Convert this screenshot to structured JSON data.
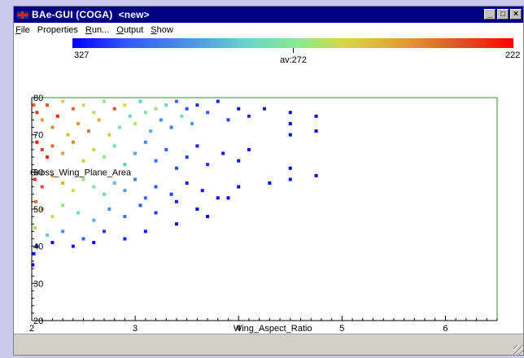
{
  "window": {
    "title": "BAe-GUI (COGA)  <new>",
    "buttons": {
      "minimize": "_",
      "maximize": "□",
      "close": "×"
    }
  },
  "menu": [
    {
      "label": "File",
      "underline": "F",
      "rest": "ile"
    },
    {
      "label": "Properties",
      "underline": "",
      "rest": "Properties"
    },
    {
      "label": "Run...",
      "underline": "R",
      "rest": "un..."
    },
    {
      "label": "Output",
      "underline": "O",
      "rest": "utput"
    },
    {
      "label": "Show",
      "underline": "S",
      "rest": "how"
    }
  ],
  "colorbar": {
    "min_label": "327",
    "max_label": "222",
    "avg_label": "av:272",
    "colors": [
      "#0000ff",
      "#3355ff",
      "#4a8be8",
      "#6ad6c8",
      "#8ee88a",
      "#d8d840",
      "#e09a30",
      "#e05028",
      "#ff0000"
    ]
  },
  "chart_data": {
    "type": "scatter",
    "xlabel": "Wing_Aspect_Ratio",
    "ylabel": "Gross_Wing_Plane_Area",
    "xlim": [
      2,
      6.5
    ],
    "ylim": [
      20,
      80
    ],
    "xticks": [
      "2",
      "3",
      "4",
      "5",
      "6"
    ],
    "yticks": [
      "20",
      "30",
      "40",
      "50",
      "60",
      "70",
      "80"
    ],
    "grid": false,
    "color_scale": "value 327 (blue) to 222 (red)",
    "points": [
      {
        "x": 2.02,
        "y": 78,
        "v": 240
      },
      {
        "x": 2.05,
        "y": 76,
        "v": 230
      },
      {
        "x": 2.1,
        "y": 74,
        "v": 250
      },
      {
        "x": 2.15,
        "y": 78,
        "v": 235
      },
      {
        "x": 2.2,
        "y": 72,
        "v": 245
      },
      {
        "x": 2.25,
        "y": 75,
        "v": 228
      },
      {
        "x": 2.3,
        "y": 79,
        "v": 260
      },
      {
        "x": 2.35,
        "y": 70,
        "v": 255
      },
      {
        "x": 2.4,
        "y": 77,
        "v": 238
      },
      {
        "x": 2.45,
        "y": 73,
        "v": 248
      },
      {
        "x": 2.5,
        "y": 78,
        "v": 265
      },
      {
        "x": 2.55,
        "y": 71,
        "v": 242
      },
      {
        "x": 2.6,
        "y": 76,
        "v": 270
      },
      {
        "x": 2.65,
        "y": 74,
        "v": 252
      },
      {
        "x": 2.7,
        "y": 79,
        "v": 275
      },
      {
        "x": 2.75,
        "y": 70,
        "v": 258
      },
      {
        "x": 2.8,
        "y": 77,
        "v": 236
      },
      {
        "x": 2.85,
        "y": 72,
        "v": 280
      },
      {
        "x": 2.9,
        "y": 78,
        "v": 262
      },
      {
        "x": 2.95,
        "y": 75,
        "v": 285
      },
      {
        "x": 3.0,
        "y": 73,
        "v": 268
      },
      {
        "x": 3.05,
        "y": 79,
        "v": 290
      },
      {
        "x": 3.1,
        "y": 76,
        "v": 278
      },
      {
        "x": 3.15,
        "y": 71,
        "v": 295
      },
      {
        "x": 3.2,
        "y": 77,
        "v": 272
      },
      {
        "x": 3.25,
        "y": 74,
        "v": 300
      },
      {
        "x": 3.3,
        "y": 78,
        "v": 288
      },
      {
        "x": 3.35,
        "y": 72,
        "v": 305
      },
      {
        "x": 3.4,
        "y": 79,
        "v": 310
      },
      {
        "x": 3.45,
        "y": 75,
        "v": 283
      },
      {
        "x": 3.5,
        "y": 77,
        "v": 315
      },
      {
        "x": 3.55,
        "y": 73,
        "v": 298
      },
      {
        "x": 3.6,
        "y": 78,
        "v": 320
      },
      {
        "x": 3.7,
        "y": 76,
        "v": 312
      },
      {
        "x": 3.8,
        "y": 79,
        "v": 322
      },
      {
        "x": 3.9,
        "y": 74,
        "v": 318
      },
      {
        "x": 4.0,
        "y": 77,
        "v": 325
      },
      {
        "x": 4.1,
        "y": 75,
        "v": 320
      },
      {
        "x": 4.25,
        "y": 77,
        "v": 324
      },
      {
        "x": 4.5,
        "y": 76,
        "v": 326
      },
      {
        "x": 4.5,
        "y": 73,
        "v": 325
      },
      {
        "x": 4.75,
        "y": 75,
        "v": 326
      },
      {
        "x": 4.75,
        "y": 71,
        "v": 327
      },
      {
        "x": 4.5,
        "y": 70,
        "v": 326
      },
      {
        "x": 2.05,
        "y": 68,
        "v": 225
      },
      {
        "x": 2.1,
        "y": 66,
        "v": 232
      },
      {
        "x": 2.15,
        "y": 64,
        "v": 228
      },
      {
        "x": 2.2,
        "y": 67,
        "v": 240
      },
      {
        "x": 2.3,
        "y": 65,
        "v": 250
      },
      {
        "x": 2.4,
        "y": 68,
        "v": 244
      },
      {
        "x": 2.5,
        "y": 63,
        "v": 258
      },
      {
        "x": 2.6,
        "y": 66,
        "v": 266
      },
      {
        "x": 2.7,
        "y": 64,
        "v": 276
      },
      {
        "x": 2.8,
        "y": 67,
        "v": 284
      },
      {
        "x": 2.9,
        "y": 62,
        "v": 290
      },
      {
        "x": 3.0,
        "y": 65,
        "v": 296
      },
      {
        "x": 3.1,
        "y": 68,
        "v": 302
      },
      {
        "x": 3.2,
        "y": 63,
        "v": 308
      },
      {
        "x": 3.3,
        "y": 66,
        "v": 312
      },
      {
        "x": 3.4,
        "y": 61,
        "v": 316
      },
      {
        "x": 3.5,
        "y": 64,
        "v": 318
      },
      {
        "x": 3.6,
        "y": 67,
        "v": 322
      },
      {
        "x": 3.7,
        "y": 62,
        "v": 320
      },
      {
        "x": 3.85,
        "y": 65,
        "v": 324
      },
      {
        "x": 4.0,
        "y": 63,
        "v": 326
      },
      {
        "x": 4.1,
        "y": 66,
        "v": 325
      },
      {
        "x": 4.5,
        "y": 61,
        "v": 327
      },
      {
        "x": 4.75,
        "y": 59,
        "v": 326
      },
      {
        "x": 2.03,
        "y": 58,
        "v": 230
      },
      {
        "x": 2.1,
        "y": 56,
        "v": 236
      },
      {
        "x": 2.2,
        "y": 59,
        "v": 246
      },
      {
        "x": 2.3,
        "y": 57,
        "v": 254
      },
      {
        "x": 2.4,
        "y": 55,
        "v": 262
      },
      {
        "x": 2.5,
        "y": 58,
        "v": 270
      },
      {
        "x": 2.6,
        "y": 56,
        "v": 278
      },
      {
        "x": 2.7,
        "y": 54,
        "v": 286
      },
      {
        "x": 2.8,
        "y": 57,
        "v": 292
      },
      {
        "x": 2.9,
        "y": 55,
        "v": 298
      },
      {
        "x": 3.0,
        "y": 58,
        "v": 304
      },
      {
        "x": 3.1,
        "y": 53,
        "v": 310
      },
      {
        "x": 3.2,
        "y": 56,
        "v": 314
      },
      {
        "x": 3.35,
        "y": 54,
        "v": 318
      },
      {
        "x": 3.5,
        "y": 57,
        "v": 322
      },
      {
        "x": 3.65,
        "y": 55,
        "v": 324
      },
      {
        "x": 3.8,
        "y": 53,
        "v": 325
      },
      {
        "x": 4.0,
        "y": 56,
        "v": 326
      },
      {
        "x": 4.3,
        "y": 57,
        "v": 327
      },
      {
        "x": 4.5,
        "y": 58,
        "v": 326
      },
      {
        "x": 2.04,
        "y": 52,
        "v": 240
      },
      {
        "x": 2.1,
        "y": 50,
        "v": 250
      },
      {
        "x": 2.2,
        "y": 48,
        "v": 262
      },
      {
        "x": 2.3,
        "y": 51,
        "v": 272
      },
      {
        "x": 2.45,
        "y": 49,
        "v": 284
      },
      {
        "x": 2.6,
        "y": 47,
        "v": 294
      },
      {
        "x": 2.75,
        "y": 50,
        "v": 300
      },
      {
        "x": 2.9,
        "y": 48,
        "v": 308
      },
      {
        "x": 3.05,
        "y": 51,
        "v": 312
      },
      {
        "x": 3.2,
        "y": 49,
        "v": 318
      },
      {
        "x": 3.4,
        "y": 52,
        "v": 322
      },
      {
        "x": 3.6,
        "y": 50,
        "v": 325
      },
      {
        "x": 3.9,
        "y": 53,
        "v": 326
      },
      {
        "x": 3.7,
        "y": 48,
        "v": 326
      },
      {
        "x": 2.03,
        "y": 45,
        "v": 270
      },
      {
        "x": 2.15,
        "y": 43,
        "v": 290
      },
      {
        "x": 2.3,
        "y": 44,
        "v": 300
      },
      {
        "x": 2.5,
        "y": 42,
        "v": 312
      },
      {
        "x": 2.7,
        "y": 44,
        "v": 318
      },
      {
        "x": 2.9,
        "y": 42,
        "v": 322
      },
      {
        "x": 3.1,
        "y": 44,
        "v": 324
      },
      {
        "x": 3.4,
        "y": 46,
        "v": 326
      },
      {
        "x": 2.05,
        "y": 40,
        "v": 320
      },
      {
        "x": 2.2,
        "y": 41,
        "v": 325
      },
      {
        "x": 2.02,
        "y": 38,
        "v": 326
      },
      {
        "x": 2.01,
        "y": 35,
        "v": 327
      },
      {
        "x": 2.4,
        "y": 40,
        "v": 324
      },
      {
        "x": 2.6,
        "y": 41,
        "v": 326
      }
    ]
  }
}
